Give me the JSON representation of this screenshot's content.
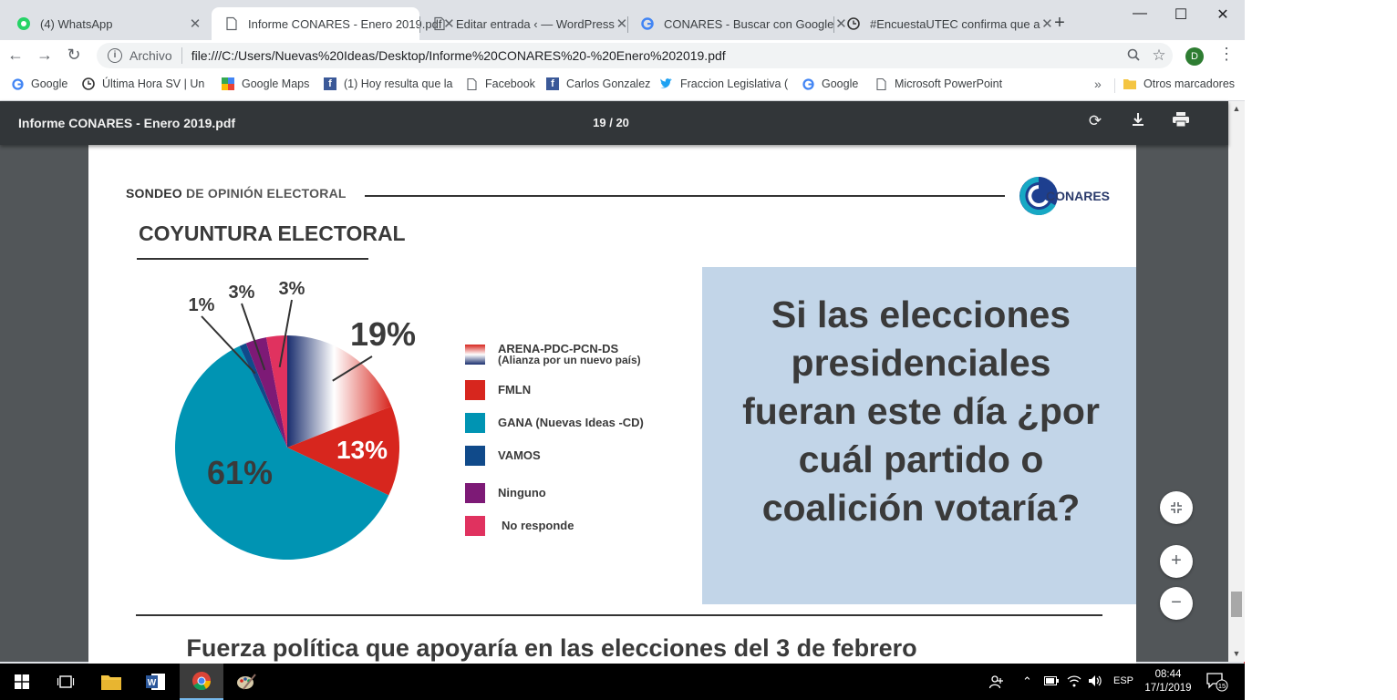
{
  "tabs": [
    {
      "title": "(4) WhatsApp",
      "icon": "whatsapp-icon",
      "color": "#25d366"
    },
    {
      "title": "Informe CONARES - Enero 2019.pdf",
      "icon": "document-icon",
      "color": "#5f6368"
    },
    {
      "title": "Editar entrada ‹ — WordPress",
      "icon": "document-icon",
      "color": "#5f6368"
    },
    {
      "title": "CONARES - Buscar con Google",
      "icon": "google-icon",
      "color": "#4285f4"
    },
    {
      "title": "#EncuestaUTEC confirma que a",
      "icon": "clock-icon",
      "color": "#333333"
    }
  ],
  "toolbar": {
    "scheme_label": "Archivo",
    "url": "file:///C:/Users/Nuevas%20Ideas/Desktop/Informe%20CONARES%20-%20Enero%202019.pdf",
    "profile_initial": "D"
  },
  "bookmarks": [
    {
      "label": "Google",
      "icon": "google-icon"
    },
    {
      "label": "Última Hora SV | Un",
      "icon": "clock-icon"
    },
    {
      "label": "Google Maps",
      "icon": "maps-icon"
    },
    {
      "label": "(1) Hoy resulta que la",
      "icon": "facebook-icon"
    },
    {
      "label": "Facebook",
      "icon": "document-icon"
    },
    {
      "label": "Carlos Gonzalez",
      "icon": "facebook-icon"
    },
    {
      "label": "Fraccion Legislativa (",
      "icon": "twitter-icon"
    },
    {
      "label": "Google",
      "icon": "google-icon"
    },
    {
      "label": "Microsoft PowerPoint",
      "icon": "document-icon"
    }
  ],
  "bookmarks_more": "»",
  "other_bookmarks": "Otros marcadores",
  "pdf": {
    "filename": "Informe CONARES - Enero 2019.pdf",
    "page_current": "19",
    "page_total": "20",
    "page_sep": "/"
  },
  "document": {
    "header_strong": "SONDEO",
    "header_rest": "DE OPINIÓN ELECTORAL",
    "logo_text": "CONARES",
    "section_title": "COYUNTURA ELECTORAL",
    "question": "Si las elecciones presidenciales fueran este día ¿por cuál partido o coalición votaría?",
    "bottom_title": "Fuerza política que apoyaría en las elecciones del 3 de febrero"
  },
  "chart_data": {
    "type": "pie",
    "slices": [
      {
        "name": "ARENA-PDC-PCN-DS",
        "name_sub": "(Alianza por un nuevo país)",
        "value": 19,
        "label": "19%",
        "color": "#1a2e6e"
      },
      {
        "name": "FMLN",
        "value": 13,
        "label": "13%",
        "color": "#d7261e"
      },
      {
        "name": "GANA (Nuevas Ideas -CD)",
        "value": 61,
        "label": "61%",
        "color": "#0094b3"
      },
      {
        "name": "VAMOS",
        "value": 1,
        "label": "1%",
        "color": "#104a8a"
      },
      {
        "name": "Ninguno",
        "value": 3,
        "label": "3%",
        "color": "#7d1a76"
      },
      {
        "name": "No responde",
        "value": 3,
        "label": "3%",
        "color": "#e0325f"
      }
    ]
  },
  "taskbar": {
    "language": "ESP",
    "time": "08:44",
    "date": "17/1/2019",
    "notifications": "15"
  }
}
